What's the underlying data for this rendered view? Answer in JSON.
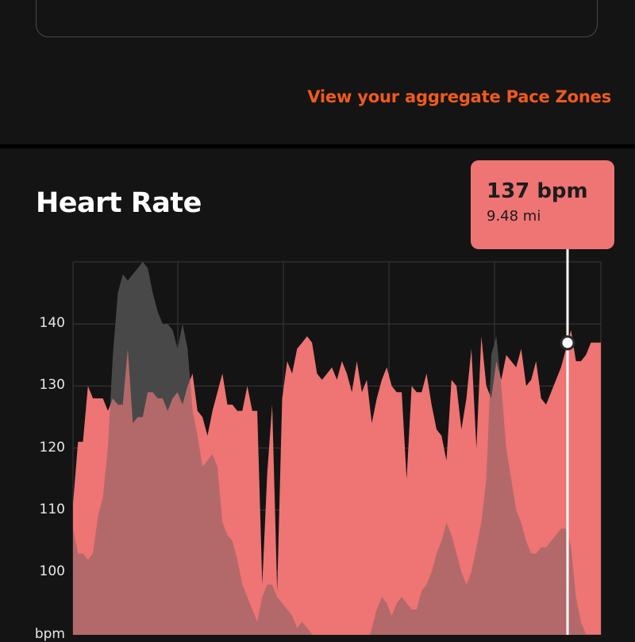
{
  "links": {
    "pace_zones": "View your aggregate Pace Zones"
  },
  "section": {
    "title": "Heart Rate"
  },
  "tooltip": {
    "value": "137 bpm",
    "distance": "9.48 mi"
  },
  "colors": {
    "accent": "#f05a1e",
    "heart_rate": "#ef7474",
    "elevation": "#3c3c3c",
    "background": "#141414"
  },
  "chart_data": {
    "type": "area",
    "title": "Heart Rate",
    "ylabel": "bpm",
    "yticks": [
      100,
      110,
      120,
      130,
      140
    ],
    "ylim": [
      90,
      150
    ],
    "series": [
      {
        "name": "",
        "values": [
          111,
          121,
          121,
          130,
          128,
          128,
          128,
          126,
          128,
          127,
          127,
          136,
          124,
          125,
          125,
          129,
          129,
          128,
          128,
          126,
          128,
          129,
          127,
          130,
          132,
          126,
          125,
          122,
          126,
          129,
          132,
          127,
          127,
          126,
          126,
          130,
          126,
          126,
          98,
          116,
          127,
          97,
          128,
          134,
          132,
          136,
          137,
          138,
          137,
          132,
          131,
          132,
          133,
          131,
          134,
          132,
          129,
          134,
          129,
          131,
          124,
          128,
          131,
          133,
          130,
          129,
          129,
          115,
          130,
          129,
          129,
          132,
          127,
          123,
          122,
          118,
          131,
          130,
          123,
          128,
          136,
          120,
          138,
          130,
          128,
          134,
          131,
          135,
          134,
          133,
          136,
          130,
          131,
          134,
          128,
          127,
          129,
          131,
          133,
          136,
          139,
          134,
          134,
          135,
          137,
          137,
          137
        ]
      },
      {
        "name": "",
        "values": [
          107,
          103,
          103,
          102,
          103,
          109,
          112,
          120,
          135,
          145,
          148,
          147,
          148,
          149,
          150,
          149,
          145,
          142,
          140,
          140,
          139,
          136,
          140,
          136,
          126,
          122,
          117,
          118,
          119,
          117,
          108,
          106,
          105,
          102,
          98,
          96,
          94,
          92,
          96,
          98,
          98,
          96,
          95,
          94,
          93,
          91,
          92,
          91,
          90,
          89,
          88,
          88,
          87,
          87,
          86,
          85,
          85,
          86,
          86,
          88,
          91,
          94,
          96,
          95,
          93,
          95,
          96,
          95,
          94,
          94,
          97,
          98,
          100,
          103,
          105,
          108,
          106,
          103,
          100,
          98,
          100,
          104,
          108,
          115,
          135,
          138,
          130,
          120,
          115,
          110,
          108,
          105,
          103,
          103,
          104,
          104,
          105,
          106,
          107,
          107,
          104,
          96,
          92,
          90,
          90,
          90,
          90
        ]
      }
    ]
  }
}
